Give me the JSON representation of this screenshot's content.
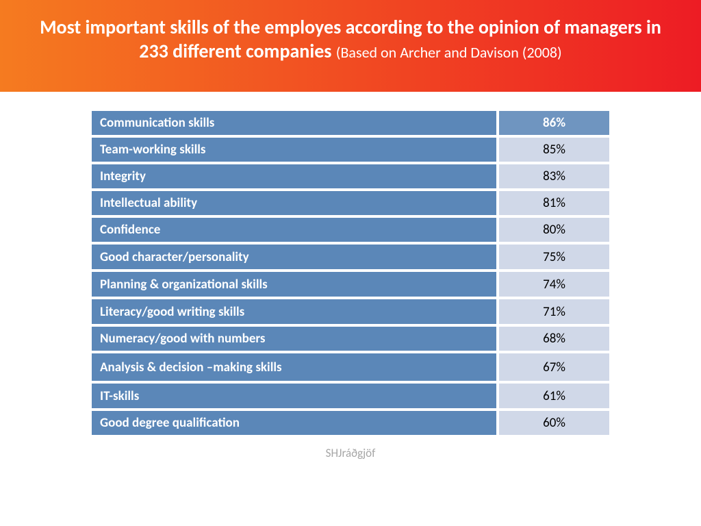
{
  "header": {
    "title_main": "Most important skills of the employes according to the opinion of managers in 233 different companies ",
    "title_sub": "(Based on Archer and Davison (2008)",
    "gradient_start": "#f57b20",
    "gradient_end": "#ed1c24",
    "main_fontsize": 28,
    "sub_fontsize": 22,
    "height": 134
  },
  "table": {
    "skill_bg": "#5b87b8",
    "header_value_bg": "#6f95c0",
    "value_bg": "#d0d8e8",
    "text_color_skill": "#ffffff",
    "text_color_value": "#000000",
    "border_color": "#ffffff",
    "font_weight_skill": 700,
    "rows": [
      {
        "skill": "Communication skills",
        "value": "86%",
        "is_header": true,
        "height": 39
      },
      {
        "skill": "Team-working skills",
        "value": "85%",
        "is_header": false,
        "height": 37
      },
      {
        "skill": "Integrity",
        "value": "83%",
        "is_header": false,
        "height": 37
      },
      {
        "skill": "Intellectual ability",
        "value": "81%",
        "is_header": false,
        "height": 37
      },
      {
        "skill": "Confidence",
        "value": "80%",
        "is_header": false,
        "height": 37
      },
      {
        "skill": "Good character/personality",
        "value": "75%",
        "is_header": false,
        "height": 40
      },
      {
        "skill": "Planning & organizational skills",
        "value": "74%",
        "is_header": false,
        "height": 40
      },
      {
        "skill": "Literacy/good writing skills",
        "value": "71%",
        "is_header": false,
        "height": 40
      },
      {
        "skill": "Numeracy/good with numbers",
        "value": "68%",
        "is_header": false,
        "height": 37
      },
      {
        "skill": "Analysis & decision –making skills",
        "value": "67%",
        "is_header": false,
        "height": 44
      },
      {
        "skill": "IT-skills",
        "value": "61%",
        "is_header": false,
        "height": 40
      },
      {
        "skill": "Good degree qualification",
        "value": "60%",
        "is_header": false,
        "height": 37
      }
    ]
  },
  "footer": {
    "text": "SHJráðgjöf"
  }
}
